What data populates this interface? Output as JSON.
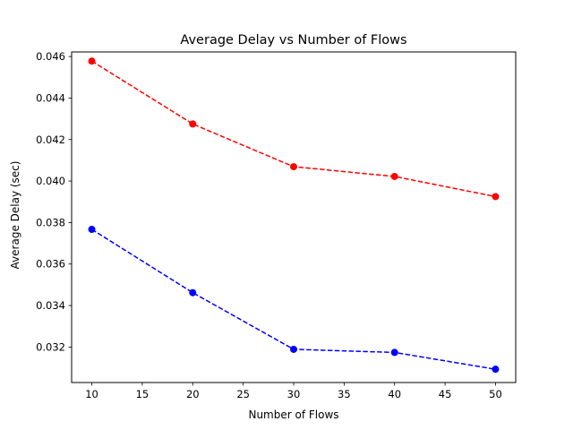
{
  "chart_data": {
    "type": "line",
    "title": "Average Delay vs Number of Flows",
    "xlabel": "Number of Flows",
    "ylabel": "Average Delay (sec)",
    "x": [
      10,
      20,
      30,
      40,
      50
    ],
    "xticks": [
      10,
      15,
      20,
      25,
      30,
      35,
      40,
      45,
      50
    ],
    "yticks": [
      0.032,
      0.034,
      0.036,
      0.038,
      0.04,
      0.042,
      0.044,
      0.046
    ],
    "xlim": [
      8,
      52
    ],
    "ylim": [
      0.03029,
      0.04622
    ],
    "grid": false,
    "series": [
      {
        "values": [
          0.04578,
          0.04275,
          0.04069,
          0.04022,
          0.03925
        ],
        "color": "#ff0000",
        "line_style": "dashed",
        "marker": "circle"
      },
      {
        "values": [
          0.03767,
          0.03462,
          0.03189,
          0.03174,
          0.03093
        ],
        "color": "#0000ff",
        "line_style": "dashed",
        "marker": "circle"
      }
    ]
  }
}
